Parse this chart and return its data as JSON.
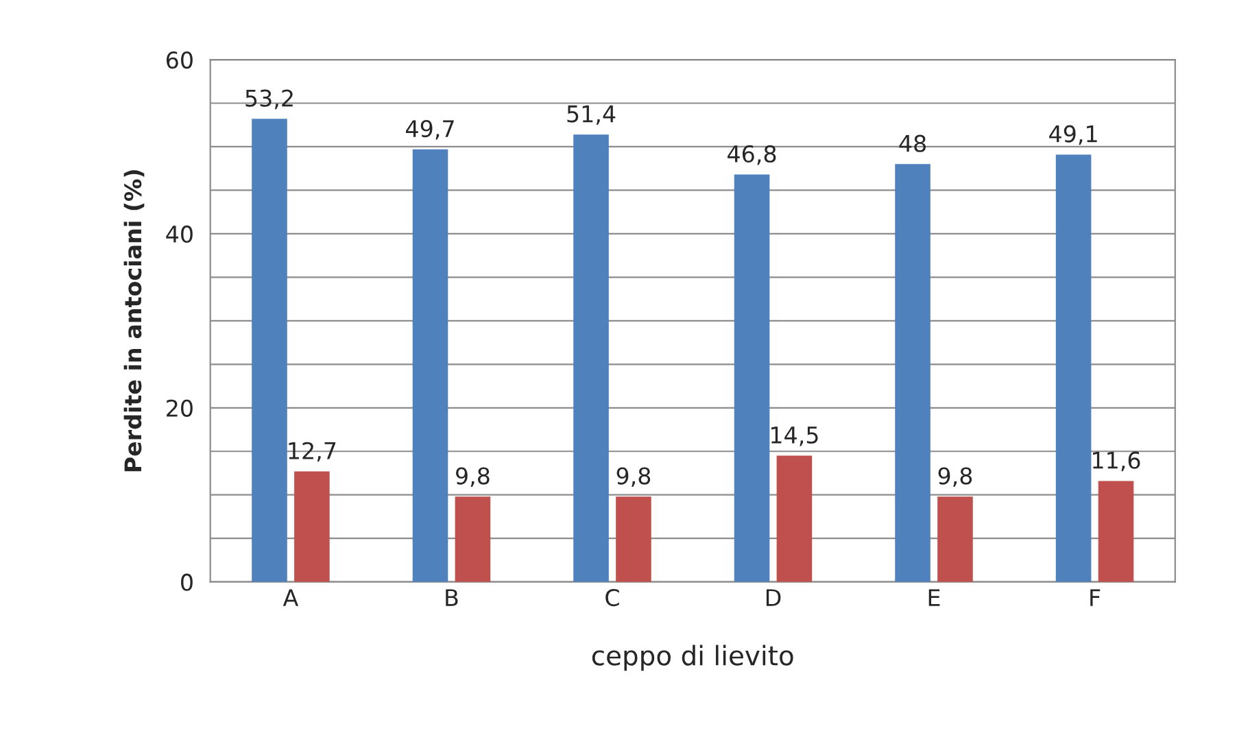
{
  "chart_data": {
    "type": "bar",
    "xlabel": "ceppo di lievito",
    "ylabel": "Perdite in antociani (%)",
    "categories": [
      "A",
      "B",
      "C",
      "D",
      "E",
      "F"
    ],
    "series": [
      {
        "color": "#4f81bd",
        "values": [
          53.2,
          49.7,
          51.4,
          46.8,
          48,
          49.1
        ],
        "value_labels": [
          "53,2",
          "49,7",
          "51,4",
          "46,8",
          "48",
          "49,1"
        ]
      },
      {
        "color": "#c0504d",
        "values": [
          12.7,
          9.8,
          9.8,
          14.5,
          9.8,
          11.6
        ],
        "value_labels": [
          "12,7",
          "9,8",
          "9,8",
          "14,5",
          "9,8",
          "11,6"
        ]
      }
    ],
    "ylim": [
      0,
      60
    ],
    "yticks": [
      0,
      {
        "value": 5,
        "label": null
      },
      {
        "value": 10,
        "label": null
      },
      {
        "value": 15,
        "label": null
      },
      20,
      {
        "value": 25,
        "label": null
      },
      {
        "value": 30,
        "label": null
      },
      {
        "value": 35,
        "label": null
      },
      40,
      {
        "value": 45,
        "label": null
      },
      {
        "value": 50,
        "label": null
      },
      {
        "value": 55,
        "label": null
      },
      60
    ],
    "grid": "y",
    "legend": false
  }
}
